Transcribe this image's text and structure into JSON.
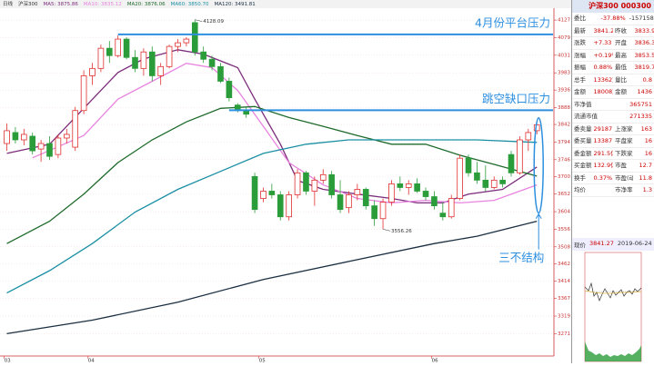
{
  "chart_data": {
    "type": "candlestick",
    "top_bar": [
      "日线",
      "沪深300",
      "MA5: 3875.86",
      "MA10: 3835.12",
      "MA20: 3876.06",
      "MA60: 3850.70",
      "MA120: 3491.81"
    ],
    "categories": [
      null,
      null,
      null,
      null,
      null,
      null,
      null,
      null,
      null,
      null,
      null,
      null,
      null,
      null,
      null,
      null,
      null,
      null,
      null,
      null,
      null,
      null,
      null,
      null,
      null,
      null,
      null,
      null,
      null,
      null,
      null,
      null,
      null,
      null,
      null,
      null,
      null,
      null,
      null,
      null,
      null,
      null,
      null,
      null,
      null,
      null,
      null,
      null,
      null,
      null,
      null,
      null,
      null,
      null,
      null,
      null,
      null,
      null,
      null,
      null,
      null,
      null,
      null
    ],
    "open": [
      3790,
      3820,
      3800,
      3810,
      3775,
      3790,
      3760,
      3805,
      3780,
      3880,
      3975,
      3995,
      4050,
      4030,
      4075,
      4025,
      3995,
      4040,
      3975,
      4000,
      4055,
      4065,
      4120,
      4040,
      4020,
      4000,
      3960,
      3895,
      3880,
      3700,
      3640,
      3660,
      3650,
      3590,
      3650,
      3710,
      3660,
      3690,
      3705,
      3650,
      3615,
      3650,
      3665,
      3620,
      3585,
      3630,
      3680,
      3670,
      3680,
      3660,
      3645,
      3600,
      3590,
      3640,
      3750,
      3710,
      3690,
      3670,
      3690,
      3760,
      3710,
      3800,
      3825
    ],
    "high": [
      3845,
      3835,
      3830,
      3820,
      3800,
      3810,
      3815,
      3830,
      3890,
      3990,
      4010,
      4060,
      4070,
      4085,
      4080,
      4045,
      4050,
      4055,
      4010,
      4060,
      4075,
      4080,
      4128,
      4055,
      4030,
      4010,
      3970,
      3900,
      3890,
      3710,
      3670,
      3680,
      3660,
      3660,
      3720,
      3715,
      3700,
      3720,
      3715,
      3690,
      3660,
      3680,
      3670,
      3635,
      3640,
      3690,
      3700,
      3690,
      3695,
      3670,
      3660,
      3630,
      3650,
      3760,
      3760,
      3740,
      3730,
      3700,
      3700,
      3770,
      3810,
      3830,
      3845
    ],
    "low": [
      3770,
      3790,
      3785,
      3760,
      3740,
      3745,
      3750,
      3790,
      3770,
      3870,
      3950,
      3985,
      4010,
      4025,
      4020,
      3985,
      3975,
      3960,
      3950,
      3995,
      4040,
      4055,
      4030,
      4010,
      3990,
      3955,
      3905,
      3875,
      3860,
      3600,
      3630,
      3640,
      3580,
      3580,
      3640,
      3650,
      3620,
      3680,
      3640,
      3600,
      3600,
      3635,
      3610,
      3565,
      3556,
      3620,
      3660,
      3650,
      3655,
      3635,
      3610,
      3580,
      3585,
      3635,
      3700,
      3680,
      3660,
      3665,
      3670,
      3700,
      3705,
      3770,
      3815
    ],
    "close": [
      3825,
      3800,
      3815,
      3770,
      3790,
      3755,
      3805,
      3815,
      3880,
      3975,
      3995,
      4050,
      4030,
      4075,
      4025,
      3995,
      4040,
      3975,
      4000,
      4055,
      4065,
      4075,
      4040,
      4020,
      4000,
      3960,
      3915,
      3880,
      3870,
      3610,
      3660,
      3650,
      3590,
      3650,
      3710,
      3660,
      3690,
      3705,
      3650,
      3610,
      3650,
      3665,
      3620,
      3585,
      3630,
      3680,
      3670,
      3680,
      3660,
      3645,
      3620,
      3590,
      3640,
      3750,
      3710,
      3690,
      3670,
      3690,
      3680,
      3710,
      3800,
      3820,
      3841
    ],
    "up_color": "#e03030",
    "down_color": "#2a9d3a",
    "series": [
      {
        "name": "MA5",
        "color": "#7b2d7b",
        "x": [
          0,
          5,
          9,
          13,
          16,
          20,
          23,
          27,
          29,
          32,
          34,
          37,
          41,
          45,
          48,
          51,
          54,
          58,
          62
        ],
        "values": [
          3763,
          3788,
          3886,
          3984,
          4021,
          4046,
          4034,
          3997,
          3911,
          3788,
          3689,
          3665,
          3652,
          3640,
          3628,
          3628,
          3652,
          3665,
          3726
        ]
      },
      {
        "name": "MA10",
        "color": "#e884e0",
        "x": [
          3,
          9,
          13,
          17,
          21,
          24,
          27,
          30,
          33,
          37,
          41,
          45,
          49,
          53,
          57,
          62
        ],
        "values": [
          3751,
          3812,
          3911,
          3960,
          4009,
          3997,
          3935,
          3837,
          3738,
          3677,
          3640,
          3628,
          3635,
          3628,
          3635,
          3677
        ]
      },
      {
        "name": "MA20",
        "color": "#1f6b2c",
        "x": [
          0,
          5,
          9,
          13,
          17,
          21,
          25,
          29,
          33,
          37,
          41,
          45,
          49,
          53,
          57,
          62
        ],
        "values": [
          3517,
          3578,
          3652,
          3738,
          3800,
          3849,
          3886,
          3891,
          3861,
          3837,
          3812,
          3788,
          3788,
          3758,
          3733,
          3701
        ]
      },
      {
        "name": "MA60",
        "color": "#1a8fa3",
        "x": [
          0,
          5,
          10,
          15,
          20,
          25,
          30,
          35,
          40,
          45,
          50,
          55,
          62
        ],
        "values": [
          3382,
          3443,
          3517,
          3603,
          3665,
          3714,
          3763,
          3788,
          3800,
          3800,
          3800,
          3800,
          3793
        ]
      },
      {
        "name": "MA120",
        "color": "#1b2f42",
        "x": [
          0,
          10,
          20,
          30,
          40,
          50,
          55,
          62
        ],
        "values": [
          3271,
          3308,
          3357,
          3419,
          3468,
          3517,
          3537,
          3578
        ]
      }
    ],
    "xlim": [
      -0.8,
      64
    ],
    "xticks": [
      {
        "value": -0.3,
        "label": "03"
      },
      {
        "value": 9.5,
        "label": "04"
      },
      {
        "value": 29.5,
        "label": "05"
      },
      {
        "value": 49.7,
        "label": "06"
      }
    ],
    "ylim": [
      3210,
      4157
    ],
    "yticks": [
      4127,
      4079,
      4031,
      3983,
      3936,
      3888,
      3842,
      3794,
      3746,
      3700,
      3652,
      3604,
      3556,
      3508,
      3462,
      3414,
      3367,
      3319,
      3271
    ],
    "grid": true,
    "resistance_lines": [
      {
        "value": 4088,
        "from": 13,
        "label": "4月份平台压力"
      },
      {
        "value": 3881,
        "from": 26,
        "label": "跳空缺口压力"
      }
    ],
    "extremes": [
      {
        "index": 22,
        "value": 4128.09,
        "label": "4128.09"
      },
      {
        "index": 44,
        "value": 3556.26,
        "label": "3556.26"
      }
    ],
    "callout": {
      "label": "三不结构",
      "index": 62,
      "from": 3860,
      "to": 3600
    }
  },
  "panel": {
    "header": "沪深300 000300",
    "rows": [
      [
        "委比",
        "-37.88%",
        "-1571589"
      ],
      [
        "最新",
        "3841.27",
        "昨收",
        "3833.9"
      ],
      [
        "涨跌",
        "+7.33",
        "开盘",
        "3836.3"
      ],
      [
        "涨幅",
        "+0.19%",
        "最高",
        "3853.5"
      ],
      [
        "振幅",
        "0.88%",
        "最低",
        "3819.7"
      ],
      [
        "总手",
        "13362万",
        "量比",
        "0.8"
      ],
      [
        "金额",
        "18008万",
        "金额",
        "1436"
      ],
      [
        "市净值",
        "365751"
      ],
      [
        "流通市值",
        "271335"
      ],
      [
        "委卖量",
        "29187",
        "上涨家数",
        "163"
      ],
      [
        "委买量",
        "13387",
        "平盘家数",
        "16"
      ],
      [
        "委金额",
        "291.5亿",
        "下跌家数",
        "16"
      ],
      [
        "买金额",
        "132.9亿",
        "市盈",
        "12.7"
      ],
      [
        "换手",
        "0.37%",
        "市盈(动)",
        "11.8"
      ],
      [
        "均价",
        "",
        "市净率",
        "1.3"
      ]
    ],
    "mini_label": "现价",
    "mini_price": "3841.27",
    "mini_date": "2019-06-24"
  }
}
